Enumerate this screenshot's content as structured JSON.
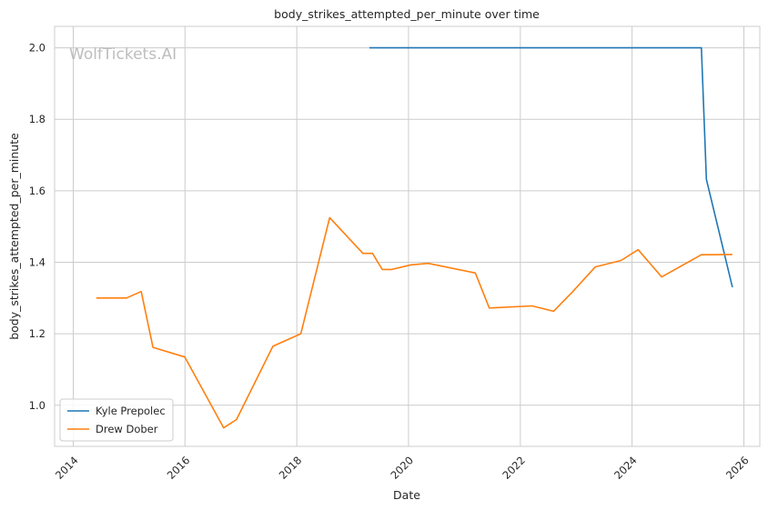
{
  "chart_data": {
    "type": "line",
    "title": "body_strikes_attempted_per_minute over time",
    "xlabel": "Date",
    "ylabel": "body_strikes_attempted_per_minute",
    "watermark": "WolfTickets.AI",
    "x_axis_type": "date",
    "xlim": [
      "2013-09-01",
      "2026-04-15"
    ],
    "ylim": [
      0.885,
      2.06
    ],
    "x_ticks": [
      "2014",
      "2016",
      "2018",
      "2020",
      "2022",
      "2024",
      "2026"
    ],
    "y_ticks": [
      "1.0",
      "1.2",
      "1.4",
      "1.6",
      "1.8",
      "2.0"
    ],
    "grid": true,
    "legend_position": "lower-left",
    "series": [
      {
        "name": "Kyle Prepolec",
        "color": "#1f77b4",
        "points": [
          [
            "2019-04-20",
            2.0
          ],
          [
            "2025-03-29",
            2.0
          ],
          [
            "2025-05-01",
            1.632
          ],
          [
            "2025-10-18",
            1.33
          ]
        ]
      },
      {
        "name": "Drew Dober",
        "color": "#ff7f0e",
        "points": [
          [
            "2014-06-01",
            1.3
          ],
          [
            "2014-12-15",
            1.3
          ],
          [
            "2015-03-21",
            1.318
          ],
          [
            "2015-06-06",
            1.162
          ],
          [
            "2015-12-31",
            1.135
          ],
          [
            "2016-09-10",
            0.937
          ],
          [
            "2016-12-03",
            0.96
          ],
          [
            "2017-07-29",
            1.165
          ],
          [
            "2018-01-27",
            1.2
          ],
          [
            "2018-08-04",
            1.525
          ],
          [
            "2019-03-09",
            1.425
          ],
          [
            "2019-05-11",
            1.425
          ],
          [
            "2019-07-13",
            1.38
          ],
          [
            "2019-09-14",
            1.38
          ],
          [
            "2020-01-18",
            1.393
          ],
          [
            "2020-05-09",
            1.397
          ],
          [
            "2021-03-13",
            1.37
          ],
          [
            "2021-06-12",
            1.272
          ],
          [
            "2022-03-19",
            1.278
          ],
          [
            "2022-08-06",
            1.263
          ],
          [
            "2022-12-10",
            1.318
          ],
          [
            "2023-05-06",
            1.387
          ],
          [
            "2023-10-21",
            1.405
          ],
          [
            "2024-02-10",
            1.435
          ],
          [
            "2024-07-13",
            1.359
          ],
          [
            "2025-03-29",
            1.421
          ],
          [
            "2025-05-31",
            1.421
          ],
          [
            "2025-10-18",
            1.422
          ]
        ]
      }
    ]
  }
}
